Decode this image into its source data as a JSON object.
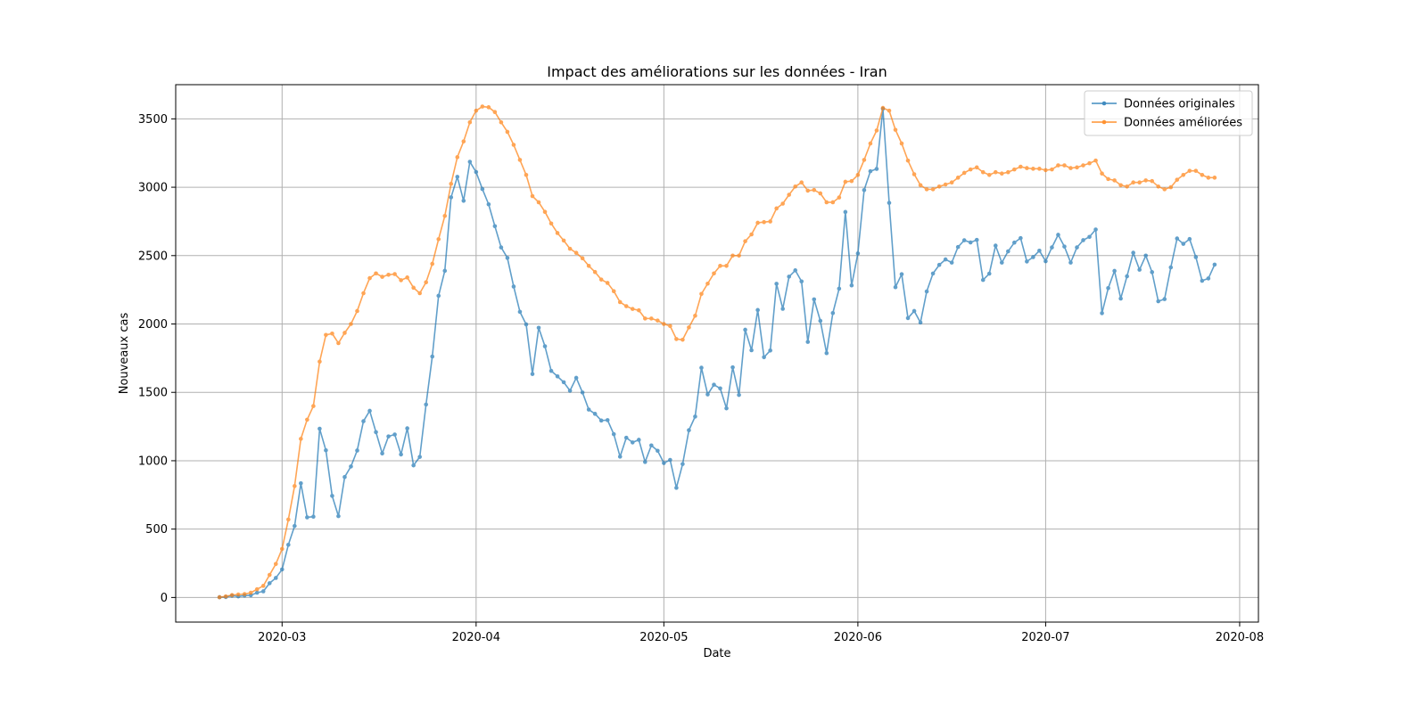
{
  "chart_data": {
    "type": "line",
    "title": "Impact des améliorations sur les données - Iran",
    "xlabel": "Date",
    "ylabel": "Nouveaux cas",
    "x_axis": {
      "type": "date",
      "min": "2020-02-13",
      "max": "2020-08-04"
    },
    "xticks": [
      "2020-03",
      "2020-04",
      "2020-05",
      "2020-06",
      "2020-07",
      "2020-08"
    ],
    "ylim": [
      -180,
      3750
    ],
    "yticks": [
      0,
      500,
      1000,
      1500,
      2000,
      2500,
      3000,
      3500
    ],
    "grid": true,
    "legend": {
      "position": "top-right"
    },
    "x": [
      "2020-02-20",
      "2020-02-21",
      "2020-02-22",
      "2020-02-23",
      "2020-02-24",
      "2020-02-25",
      "2020-02-26",
      "2020-02-27",
      "2020-02-28",
      "2020-02-29",
      "2020-03-01",
      "2020-03-02",
      "2020-03-03",
      "2020-03-04",
      "2020-03-05",
      "2020-03-06",
      "2020-03-07",
      "2020-03-08",
      "2020-03-09",
      "2020-03-10",
      "2020-03-11",
      "2020-03-12",
      "2020-03-13",
      "2020-03-14",
      "2020-03-15",
      "2020-03-16",
      "2020-03-17",
      "2020-03-18",
      "2020-03-19",
      "2020-03-20",
      "2020-03-21",
      "2020-03-22",
      "2020-03-23",
      "2020-03-24",
      "2020-03-25",
      "2020-03-26",
      "2020-03-27",
      "2020-03-28",
      "2020-03-29",
      "2020-03-30",
      "2020-03-31",
      "2020-04-01",
      "2020-04-02",
      "2020-04-03",
      "2020-04-04",
      "2020-04-05",
      "2020-04-06",
      "2020-04-07",
      "2020-04-08",
      "2020-04-09",
      "2020-04-10",
      "2020-04-11",
      "2020-04-12",
      "2020-04-13",
      "2020-04-14",
      "2020-04-15",
      "2020-04-16",
      "2020-04-17",
      "2020-04-18",
      "2020-04-19",
      "2020-04-20",
      "2020-04-21",
      "2020-04-22",
      "2020-04-23",
      "2020-04-24",
      "2020-04-25",
      "2020-04-26",
      "2020-04-27",
      "2020-04-28",
      "2020-04-29",
      "2020-04-30",
      "2020-05-01",
      "2020-05-02",
      "2020-05-03",
      "2020-05-04",
      "2020-05-05",
      "2020-05-06",
      "2020-05-07",
      "2020-05-08",
      "2020-05-09",
      "2020-05-10",
      "2020-05-11",
      "2020-05-12",
      "2020-05-13",
      "2020-05-14",
      "2020-05-15",
      "2020-05-16",
      "2020-05-17",
      "2020-05-18",
      "2020-05-19",
      "2020-05-20",
      "2020-05-21",
      "2020-05-22",
      "2020-05-23",
      "2020-05-24",
      "2020-05-25",
      "2020-05-26",
      "2020-05-27",
      "2020-05-28",
      "2020-05-29",
      "2020-05-30",
      "2020-05-31",
      "2020-06-01",
      "2020-06-02",
      "2020-06-03",
      "2020-06-04",
      "2020-06-05",
      "2020-06-06",
      "2020-06-07",
      "2020-06-08",
      "2020-06-09",
      "2020-06-10",
      "2020-06-11",
      "2020-06-12",
      "2020-06-13",
      "2020-06-14",
      "2020-06-15",
      "2020-06-16",
      "2020-06-17",
      "2020-06-18",
      "2020-06-19",
      "2020-06-20",
      "2020-06-21",
      "2020-06-22",
      "2020-06-23",
      "2020-06-24",
      "2020-06-25",
      "2020-06-26",
      "2020-06-27",
      "2020-06-28",
      "2020-06-29",
      "2020-06-30",
      "2020-07-01",
      "2020-07-02",
      "2020-07-03",
      "2020-07-04",
      "2020-07-05",
      "2020-07-06",
      "2020-07-07",
      "2020-07-08",
      "2020-07-09",
      "2020-07-10",
      "2020-07-11",
      "2020-07-12",
      "2020-07-13",
      "2020-07-14",
      "2020-07-15",
      "2020-07-16",
      "2020-07-17",
      "2020-07-18",
      "2020-07-19",
      "2020-07-20",
      "2020-07-21",
      "2020-07-22",
      "2020-07-23",
      "2020-07-24",
      "2020-07-25",
      "2020-07-26",
      "2020-07-27",
      "2020-07-28"
    ],
    "series": [
      {
        "name": "Données originales",
        "color": "#1f77b4",
        "values": [
          2,
          3,
          13,
          8,
          14,
          16,
          35,
          45,
          104,
          143,
          205,
          385,
          523,
          835,
          586,
          591,
          1234,
          1076,
          743,
          595,
          881,
          958,
          1075,
          1289,
          1365,
          1209,
          1053,
          1178,
          1192,
          1046,
          1237,
          966,
          1028,
          1411,
          1762,
          2206,
          2389,
          2926,
          3076,
          2901,
          3186,
          3111,
          2987,
          2875,
          2715,
          2560,
          2483,
          2274,
          2089,
          1997,
          1634,
          1972,
          1837,
          1657,
          1617,
          1574,
          1512,
          1606,
          1499,
          1374,
          1343,
          1294,
          1297,
          1194,
          1030,
          1168,
          1134,
          1153,
          991,
          1112,
          1073,
          983,
          1006,
          802,
          976,
          1223,
          1323,
          1680,
          1485,
          1556,
          1529,
          1383,
          1683,
          1481,
          1958,
          1808,
          2102,
          1757,
          1806,
          2294,
          2111,
          2346,
          2392,
          2311,
          1869,
          2180,
          2023,
          1787,
          2080,
          2258,
          2819,
          2282,
          2516,
          2979,
          3117,
          3134,
          3574,
          2886,
          2269,
          2364,
          2043,
          2095,
          2011,
          2238,
          2369,
          2432,
          2472,
          2449,
          2563,
          2612,
          2596,
          2615,
          2322,
          2368,
          2573,
          2449,
          2531,
          2595,
          2628,
          2457,
          2489,
          2536,
          2459,
          2560,
          2652,
          2566,
          2449,
          2560,
          2613,
          2637,
          2691,
          2079,
          2262,
          2388,
          2186,
          2349,
          2521,
          2397,
          2500,
          2379,
          2166,
          2182,
          2414,
          2625,
          2586,
          2621,
          2489,
          2316,
          2333,
          2434
        ]
      },
      {
        "name": "Données améliorées",
        "color": "#ff7f0e",
        "values": [
          2,
          8,
          18,
          22,
          25,
          35,
          60,
          85,
          165,
          245,
          355,
          570,
          815,
          1160,
          1300,
          1400,
          1725,
          1920,
          1930,
          1860,
          1935,
          2000,
          2095,
          2225,
          2335,
          2370,
          2345,
          2360,
          2365,
          2320,
          2340,
          2265,
          2225,
          2305,
          2440,
          2620,
          2790,
          3025,
          3220,
          3335,
          3475,
          3560,
          3590,
          3585,
          3550,
          3475,
          3405,
          3310,
          3200,
          3090,
          2935,
          2890,
          2820,
          2735,
          2665,
          2610,
          2550,
          2520,
          2480,
          2425,
          2380,
          2325,
          2300,
          2240,
          2160,
          2130,
          2110,
          2100,
          2040,
          2040,
          2025,
          2000,
          1985,
          1890,
          1885,
          1975,
          2060,
          2220,
          2295,
          2370,
          2425,
          2425,
          2500,
          2500,
          2605,
          2655,
          2740,
          2745,
          2750,
          2845,
          2880,
          2945,
          3005,
          3035,
          2975,
          2980,
          2955,
          2890,
          2890,
          2925,
          3040,
          3045,
          3090,
          3200,
          3320,
          3415,
          3580,
          3560,
          3420,
          3320,
          3195,
          3095,
          3015,
          2985,
          2985,
          3005,
          3020,
          3035,
          3070,
          3105,
          3130,
          3145,
          3110,
          3090,
          3110,
          3100,
          3110,
          3130,
          3150,
          3140,
          3135,
          3135,
          3125,
          3130,
          3160,
          3160,
          3140,
          3145,
          3160,
          3175,
          3195,
          3100,
          3060,
          3050,
          3015,
          3005,
          3035,
          3035,
          3050,
          3045,
          3005,
          2985,
          3000,
          3055,
          3090,
          3120,
          3120,
          3090,
          3070,
          3070
        ]
      }
    ]
  }
}
